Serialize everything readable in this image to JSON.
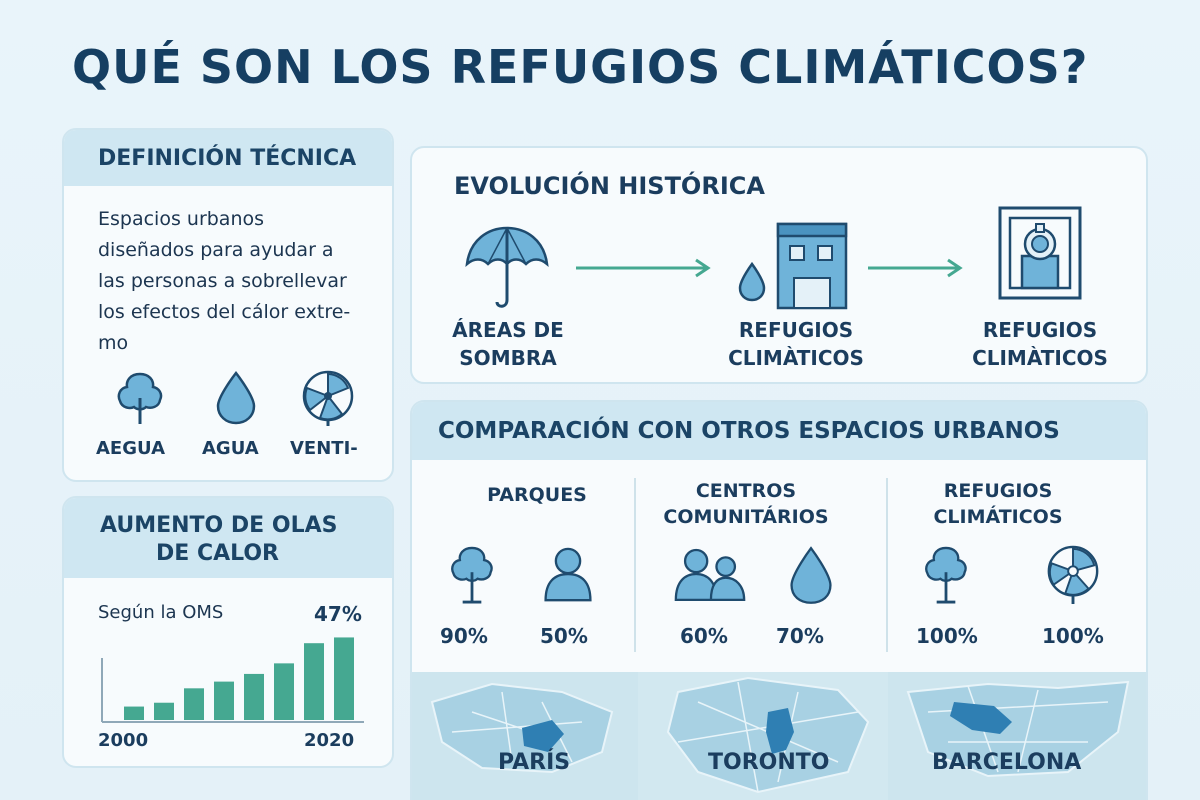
{
  "title": "QUÉ SON LOS REFUGIOS CLIMÁTICOS?",
  "definition": {
    "heading": "DEFINICIÓN TÉCNICA",
    "lines": [
      "Espacios urbanos",
      "diseñados para ayudar a",
      "las personas a sobrellevar",
      "los efectos del cálor extre-",
      "mo"
    ],
    "icons": [
      {
        "icon": "tree-icon",
        "label": "AEGUA"
      },
      {
        "icon": "water-drop-icon",
        "label": "AGUA"
      },
      {
        "icon": "fan-icon",
        "label": "VENTI-"
      }
    ]
  },
  "heat": {
    "heading_lines": [
      "AUMENTO DE OLAS",
      "DE CALOR"
    ],
    "source": "Según la OMS",
    "highlight": "47%",
    "year_start": "2000",
    "year_end": "2020"
  },
  "chart_data": {
    "type": "bar",
    "values": [
      14,
      18,
      33,
      40,
      48,
      59,
      80,
      86
    ],
    "xlabel": "",
    "ylabel": "",
    "x_tick_labels": [
      "2000",
      "2020"
    ],
    "annotation": "47%",
    "bar_color": "#45a891"
  },
  "evolution": {
    "heading": "EVOLUCIÓN HISTÓRICA",
    "steps": [
      {
        "icon": "umbrella-icon",
        "label_lines": [
          "ÁREAS DE",
          "SOMBRA"
        ]
      },
      {
        "icon": "building-water-icon",
        "label_lines": [
          "REFUGIOS",
          "CLIMÀTICOS"
        ]
      },
      {
        "icon": "shelter-frame-icon",
        "label_lines": [
          "REFUGIOS",
          "CLIMÀTICOS"
        ]
      }
    ]
  },
  "comparison": {
    "heading": "COMPARACIÓN CON OTROS ESPACIOS URBANOS",
    "columns": [
      {
        "title_lines": [
          "PARQUES"
        ],
        "items": [
          {
            "icon": "tree-icon",
            "pct": "90%"
          },
          {
            "icon": "person-icon",
            "pct": "50%"
          }
        ]
      },
      {
        "title_lines": [
          "CENTROS",
          "COMUNITÁRIOS"
        ],
        "items": [
          {
            "icon": "people-icon",
            "pct": "60%"
          },
          {
            "icon": "water-drop-icon",
            "pct": "70%"
          }
        ]
      },
      {
        "title_lines": [
          "REFUGIOS",
          "CLIMÁTICOS"
        ],
        "items": [
          {
            "icon": "tree-icon",
            "pct": "100%"
          },
          {
            "icon": "fan-icon",
            "pct": "100%"
          }
        ]
      }
    ]
  },
  "cities": [
    "PARÍS",
    "TORONTO",
    "BARCELONA"
  ],
  "colors": {
    "title": "#163f62",
    "icon_fill": "#6fb3d9",
    "icon_stroke": "#1f4b6e",
    "arrow": "#45a891",
    "bar": "#45a891",
    "header_bg": "#cfe7f2"
  }
}
